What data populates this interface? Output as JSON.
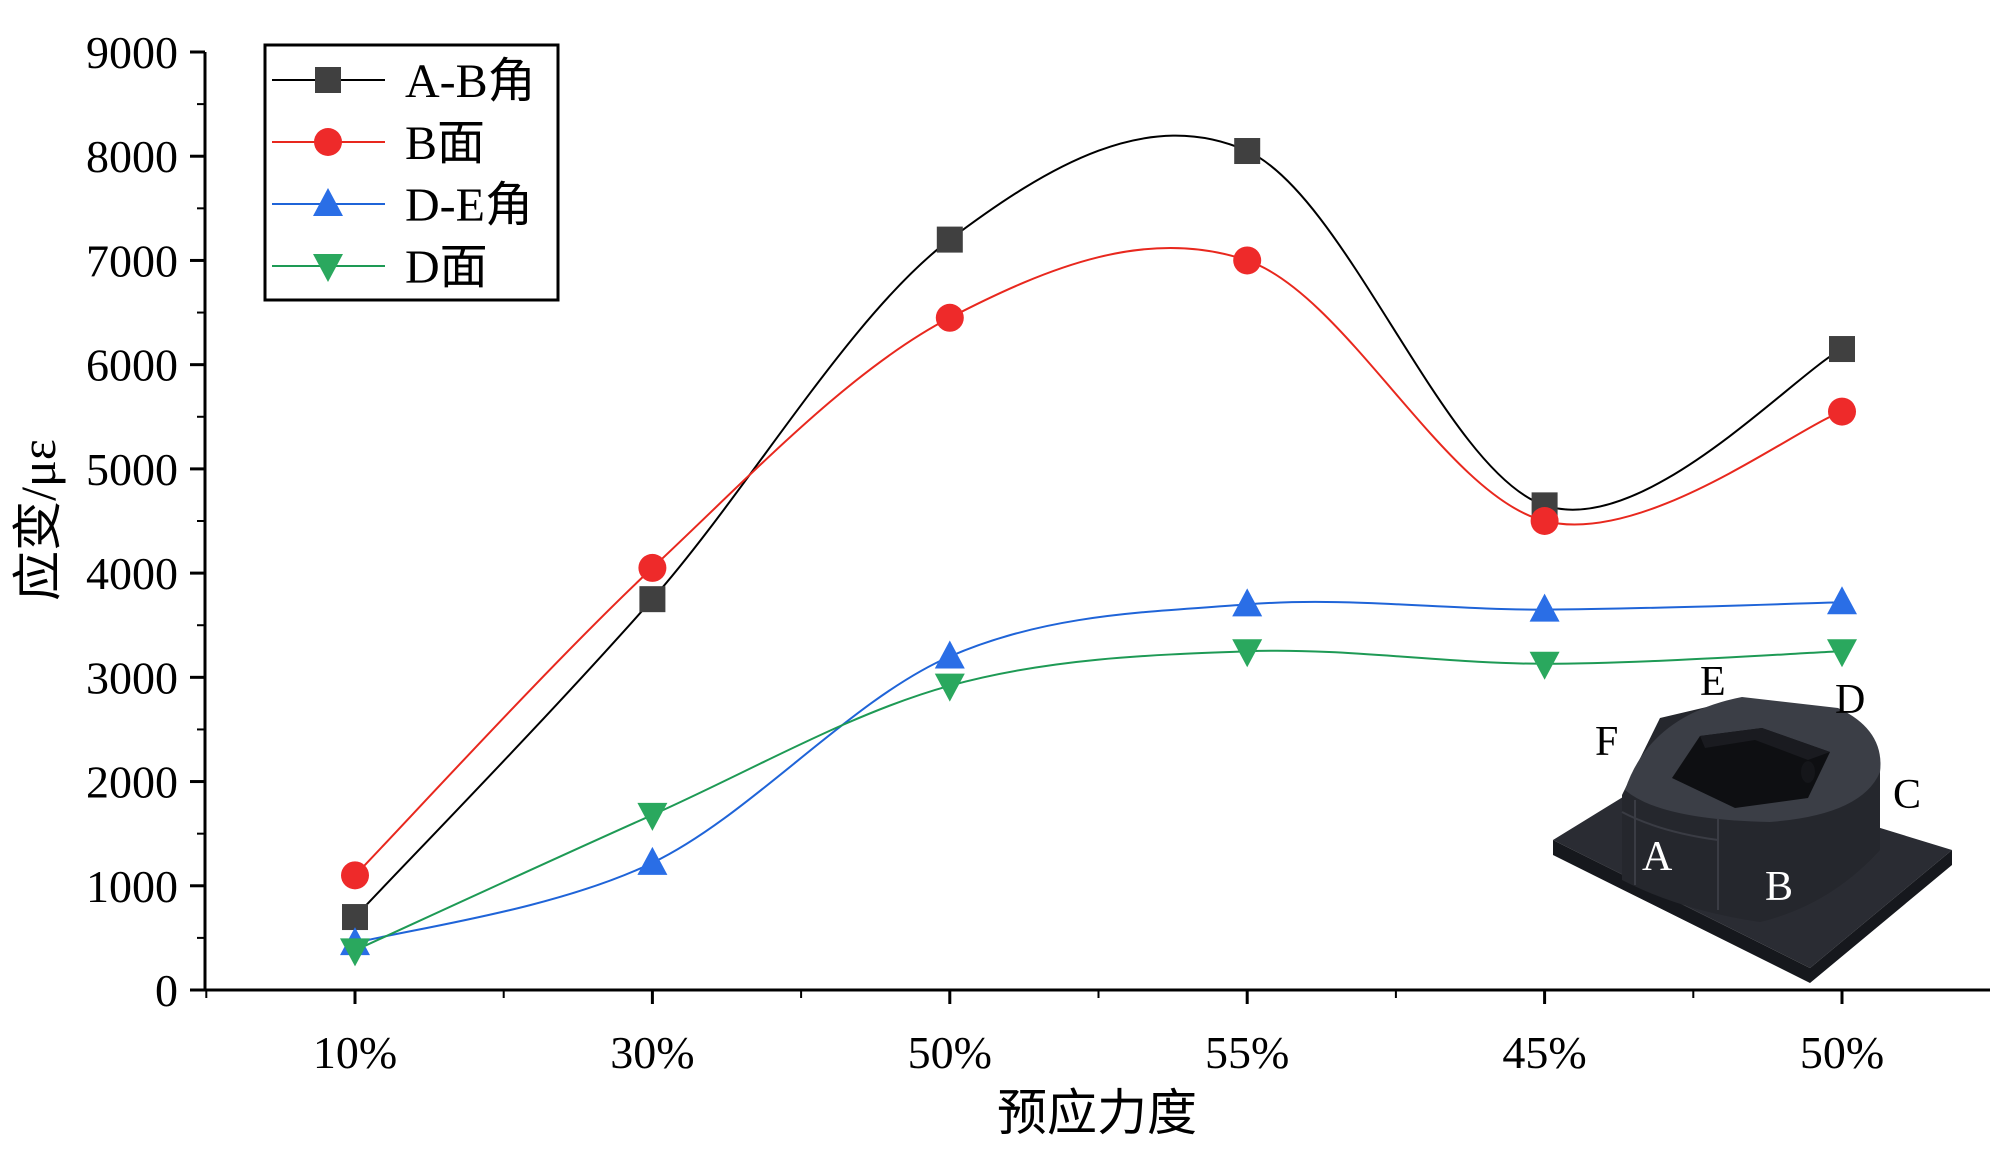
{
  "chart_data": {
    "type": "line",
    "title": "",
    "xlabel": "预应力度",
    "ylabel": "应变/με",
    "categories": [
      "10%",
      "30%",
      "50%",
      "55%",
      "45%",
      "50%"
    ],
    "ylim": [
      0,
      9000
    ],
    "yticks": [
      0,
      1000,
      2000,
      3000,
      4000,
      5000,
      6000,
      7000,
      8000,
      9000
    ],
    "legend_position": "top-left",
    "series": [
      {
        "name": "A-B角",
        "marker": "square",
        "color": "#000000",
        "marker_color": "#404040",
        "values": [
          700,
          3750,
          7200,
          8050,
          4650,
          6150
        ]
      },
      {
        "name": "B面",
        "marker": "circle",
        "color": "#e8281e",
        "marker_color": "#ee2a2a",
        "values": [
          1100,
          4050,
          6450,
          7000,
          4500,
          5550
        ]
      },
      {
        "name": "D-E角",
        "marker": "triangle-up",
        "color": "#1f64d8",
        "marker_color": "#2a6ee6",
        "values": [
          450,
          1220,
          3200,
          3700,
          3650,
          3720
        ]
      },
      {
        "name": "D面",
        "marker": "triangle-down",
        "color": "#1e9a55",
        "marker_color": "#2aa85e",
        "values": [
          380,
          1680,
          2920,
          3250,
          3130,
          3250
        ]
      }
    ],
    "inset": {
      "description_labels": [
        "A",
        "B",
        "C",
        "D",
        "E",
        "F"
      ]
    }
  }
}
